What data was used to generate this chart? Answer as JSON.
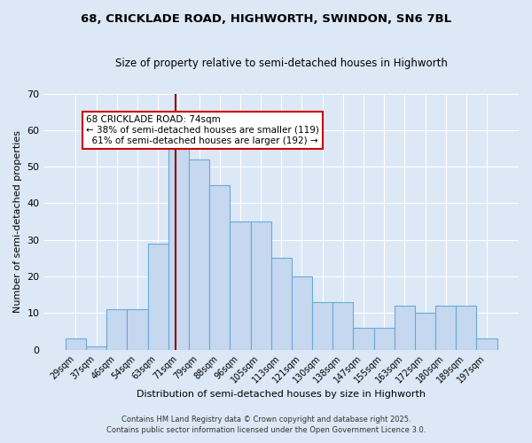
{
  "title1": "68, CRICKLADE ROAD, HIGHWORTH, SWINDON, SN6 7BL",
  "title2": "Size of property relative to semi-detached houses in Highworth",
  "xlabel": "Distribution of semi-detached houses by size in Highworth",
  "ylabel": "Number of semi-detached properties",
  "bar_labels": [
    "29sqm",
    "37sqm",
    "46sqm",
    "54sqm",
    "63sqm",
    "71sqm",
    "79sqm",
    "88sqm",
    "96sqm",
    "105sqm",
    "113sqm",
    "121sqm",
    "130sqm",
    "138sqm",
    "147sqm",
    "155sqm",
    "163sqm",
    "172sqm",
    "180sqm",
    "189sqm",
    "197sqm"
  ],
  "bar_heights": [
    3,
    1,
    11,
    11,
    29,
    55,
    52,
    45,
    35,
    35,
    25,
    20,
    13,
    13,
    6,
    6,
    12,
    10,
    12,
    12,
    3
  ],
  "bar_color": "#c5d8f0",
  "bar_edge_color": "#6aaad4",
  "bg_color": "#dce8f5",
  "grid_color": "#ffffff",
  "property_line_color": "#8b0000",
  "annotation_text": "68 CRICKLADE ROAD: 74sqm\n← 38% of semi-detached houses are smaller (119)\n  61% of semi-detached houses are larger (192) →",
  "annotation_box_color": "#ffffff",
  "annotation_box_edge": "#cc0000",
  "footnote1": "Contains HM Land Registry data © Crown copyright and database right 2025.",
  "footnote2": "Contains public sector information licensed under the Open Government Licence 3.0.",
  "ylim": [
    0,
    70
  ],
  "yticks": [
    0,
    10,
    20,
    30,
    40,
    50,
    60,
    70
  ]
}
